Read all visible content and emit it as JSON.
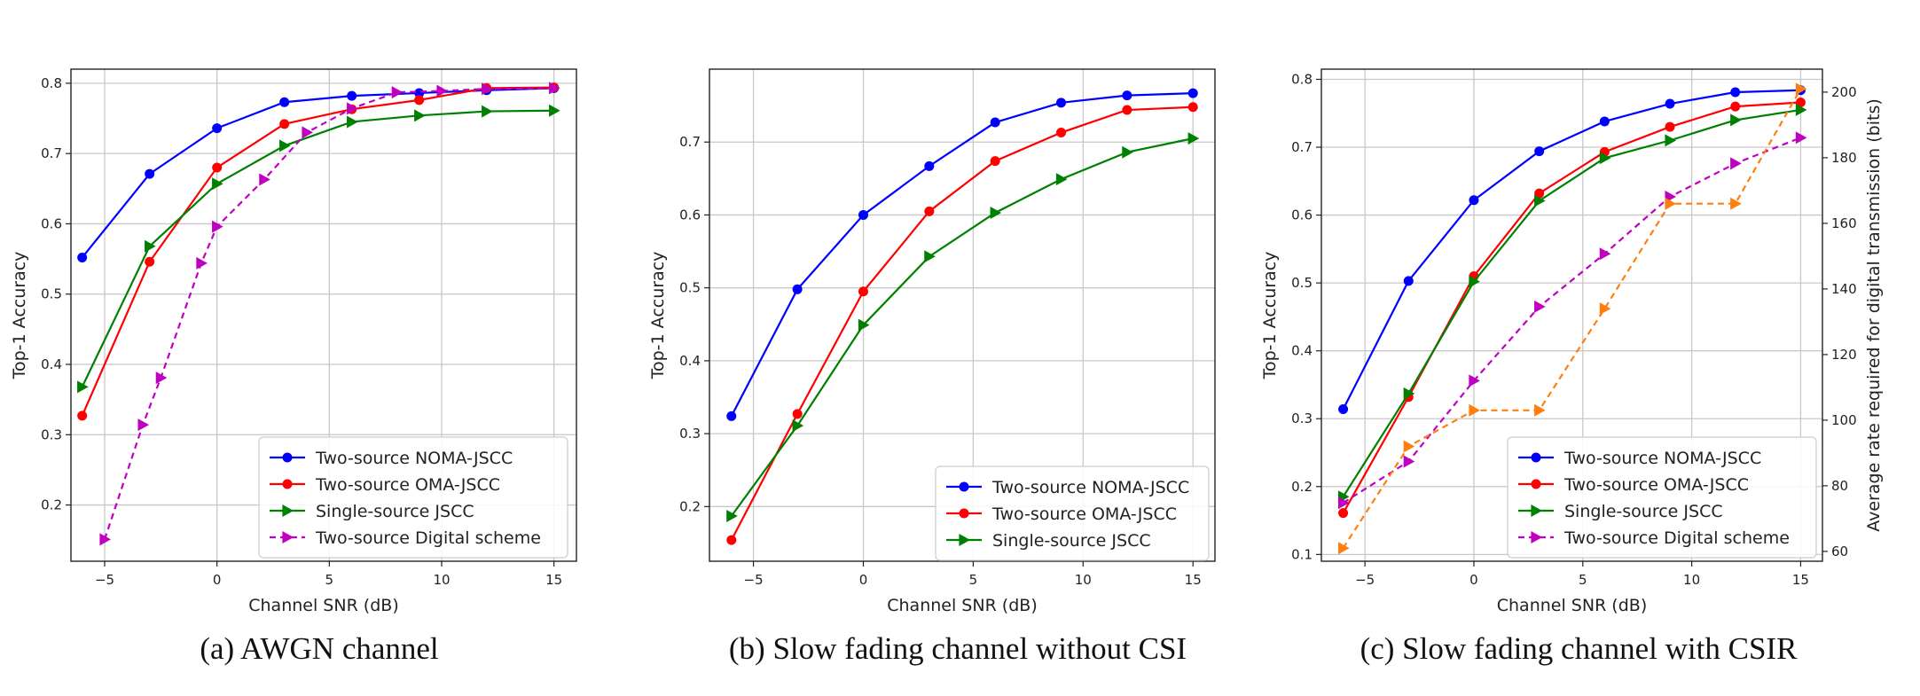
{
  "chart_data": [
    {
      "type": "line",
      "caption": "(a) AWGN channel",
      "xlabel": "Channel SNR (dB)",
      "ylabel": "Top-1 Accuracy",
      "xlim": [
        -6.5,
        16
      ],
      "ylim": [
        0.12,
        0.82
      ],
      "xticks": [
        -5,
        0,
        5,
        10,
        15
      ],
      "xtick_labels": [
        "−5",
        "0",
        "5",
        "10",
        "15"
      ],
      "yticks": [
        0.2,
        0.3,
        0.4,
        0.5,
        0.6,
        0.7,
        0.8
      ],
      "grid": true,
      "legend_position": "lower-right",
      "series": [
        {
          "name": "Two-source NOMA-JSCC",
          "color": "#0000ff",
          "marker": "circle",
          "dashed": false,
          "x": [
            -6,
            -3,
            0,
            3,
            6,
            9,
            12,
            15
          ],
          "y": [
            0.552,
            0.671,
            0.736,
            0.773,
            0.782,
            0.786,
            0.79,
            0.793
          ]
        },
        {
          "name": "Two-source OMA-JSCC",
          "color": "#ff0000",
          "marker": "circle",
          "dashed": false,
          "x": [
            -6,
            -3,
            0,
            3,
            6,
            9,
            12,
            15
          ],
          "y": [
            0.327,
            0.546,
            0.68,
            0.742,
            0.763,
            0.776,
            0.793,
            0.794
          ]
        },
        {
          "name": "Single-source JSCC",
          "color": "#008000",
          "marker": "triangle",
          "dashed": false,
          "x": [
            -6,
            -3,
            0,
            3,
            6,
            9,
            12,
            15
          ],
          "y": [
            0.368,
            0.568,
            0.657,
            0.711,
            0.745,
            0.754,
            0.76,
            0.761
          ]
        },
        {
          "name": "Two-source Digital scheme",
          "color": "#c000c0",
          "marker": "triangle",
          "dashed": true,
          "x": [
            -5,
            -3.3,
            -2.5,
            -0.7,
            0,
            2.1,
            4,
            6,
            8,
            10,
            12,
            15
          ],
          "y": [
            0.151,
            0.314,
            0.381,
            0.544,
            0.596,
            0.663,
            0.73,
            0.764,
            0.787,
            0.789,
            0.792,
            0.793
          ]
        }
      ]
    },
    {
      "type": "line",
      "caption": "(b) Slow fading channel without CSI",
      "xlabel": "Channel SNR (dB)",
      "ylabel": "Top-1 Accuracy",
      "xlim": [
        -7,
        16
      ],
      "ylim": [
        0.125,
        0.8
      ],
      "xticks": [
        -5,
        0,
        5,
        10,
        15
      ],
      "xtick_labels": [
        "−5",
        "0",
        "5",
        "10",
        "15"
      ],
      "yticks": [
        0.2,
        0.3,
        0.4,
        0.5,
        0.6,
        0.7
      ],
      "grid": true,
      "legend_position": "lower-right",
      "series": [
        {
          "name": "Two-source NOMA-JSCC",
          "color": "#0000ff",
          "marker": "circle",
          "dashed": false,
          "x": [
            -6,
            -3,
            0,
            3,
            6,
            9,
            12,
            15
          ],
          "y": [
            0.324,
            0.498,
            0.6,
            0.667,
            0.727,
            0.754,
            0.764,
            0.767
          ]
        },
        {
          "name": "Two-source OMA-JSCC",
          "color": "#ff0000",
          "marker": "circle",
          "dashed": false,
          "x": [
            -6,
            -3,
            0,
            3,
            6,
            9,
            12,
            15
          ],
          "y": [
            0.154,
            0.327,
            0.495,
            0.605,
            0.674,
            0.713,
            0.744,
            0.748
          ]
        },
        {
          "name": "Single-source JSCC",
          "color": "#008000",
          "marker": "triangle",
          "dashed": false,
          "x": [
            -6,
            -3,
            0,
            3,
            6,
            9,
            12,
            15
          ],
          "y": [
            0.187,
            0.311,
            0.449,
            0.543,
            0.603,
            0.649,
            0.686,
            0.705
          ]
        }
      ]
    },
    {
      "type": "line",
      "caption": "(c) Slow fading channel with CSIR",
      "xlabel": "Channel SNR (dB)",
      "ylabel": "Top-1 Accuracy",
      "y2label": "Average rate required for digital transmission (bits)",
      "y2color": "#ff7f0e",
      "xlim": [
        -7,
        16
      ],
      "ylim": [
        0.09,
        0.815
      ],
      "y2lim": [
        57,
        207
      ],
      "xticks": [
        -5,
        0,
        5,
        10,
        15
      ],
      "xtick_labels": [
        "−5",
        "0",
        "5",
        "10",
        "15"
      ],
      "yticks": [
        0.1,
        0.2,
        0.3,
        0.4,
        0.5,
        0.6,
        0.7,
        0.8
      ],
      "y2ticks": [
        60,
        80,
        100,
        120,
        140,
        160,
        180,
        200
      ],
      "grid": true,
      "legend_position": "lower-right",
      "series": [
        {
          "name": "Two-source NOMA-JSCC",
          "color": "#0000ff",
          "marker": "circle",
          "dashed": false,
          "axis": "left",
          "x": [
            -6,
            -3,
            0,
            3,
            6,
            9,
            12,
            15
          ],
          "y": [
            0.314,
            0.503,
            0.622,
            0.694,
            0.738,
            0.764,
            0.781,
            0.784
          ]
        },
        {
          "name": "Two-source OMA-JSCC",
          "color": "#ff0000",
          "marker": "circle",
          "dashed": false,
          "axis": "left",
          "x": [
            -6,
            -3,
            0,
            3,
            6,
            9,
            12,
            15
          ],
          "y": [
            0.161,
            0.332,
            0.51,
            0.632,
            0.693,
            0.73,
            0.76,
            0.766
          ]
        },
        {
          "name": "Single-source JSCC",
          "color": "#008000",
          "marker": "triangle",
          "dashed": false,
          "axis": "left",
          "x": [
            -6,
            -3,
            0,
            3,
            6,
            9,
            12,
            15
          ],
          "y": [
            0.185,
            0.337,
            0.502,
            0.621,
            0.684,
            0.71,
            0.74,
            0.755
          ]
        },
        {
          "name": "Two-source Digital scheme",
          "color": "#c000c0",
          "marker": "triangle",
          "dashed": true,
          "axis": "left",
          "x": [
            -6,
            -3,
            0,
            3,
            6,
            9,
            12,
            15
          ],
          "y": [
            0.176,
            0.237,
            0.356,
            0.465,
            0.543,
            0.627,
            0.676,
            0.714
          ]
        },
        {
          "name": "",
          "color": "#ff7f0e",
          "marker": "triangle",
          "dashed": true,
          "axis": "right",
          "show_in_legend": false,
          "x": [
            -6,
            -3,
            0,
            3,
            6,
            9,
            12,
            15
          ],
          "y": [
            61,
            92,
            103,
            103,
            134,
            166,
            166,
            201
          ]
        }
      ]
    }
  ]
}
